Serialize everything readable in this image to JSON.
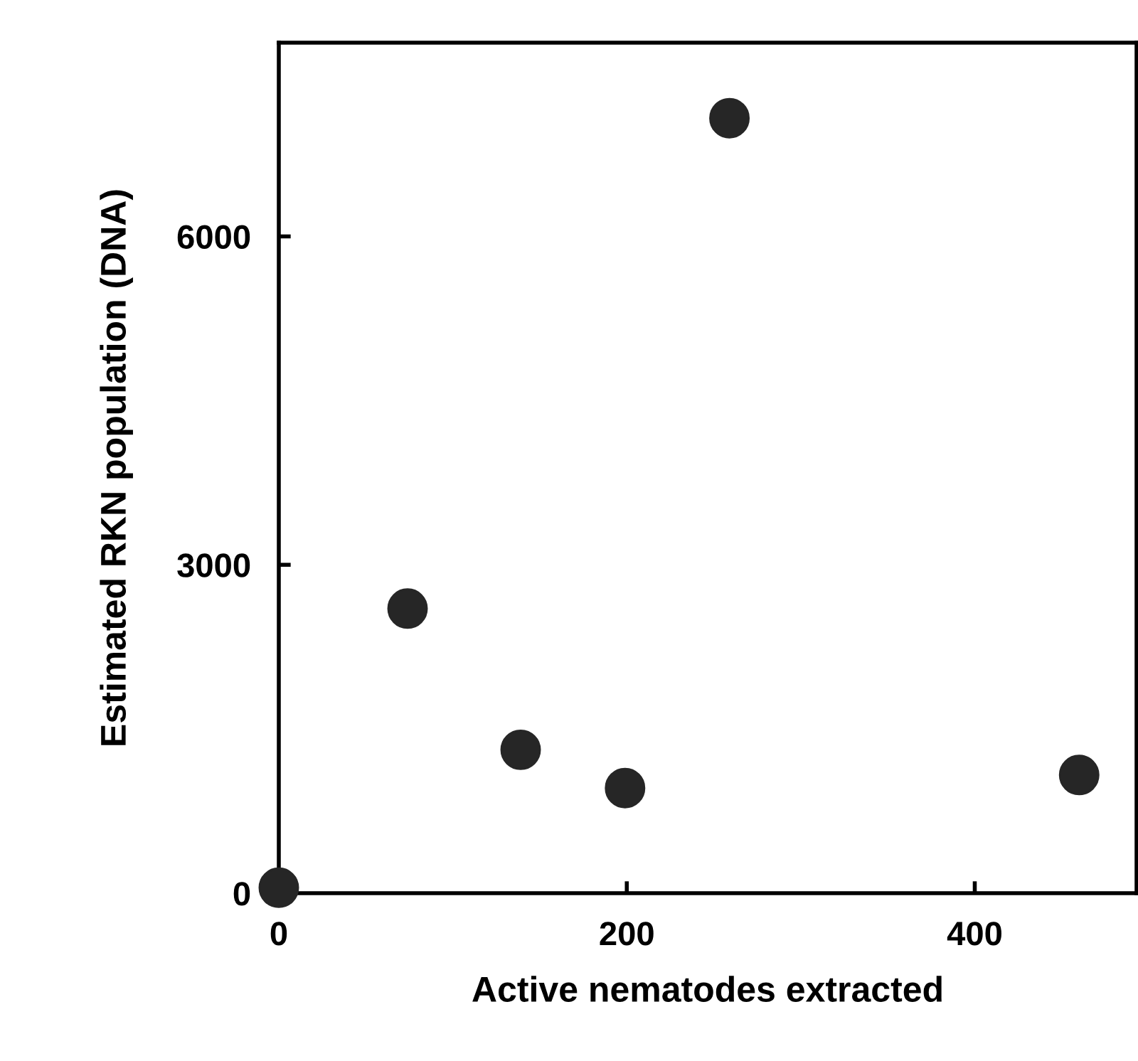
{
  "chart_data": {
    "type": "scatter",
    "xlabel": "Active nematodes extracted",
    "ylabel": "Estimated RKN population (DNA)",
    "x": [
      0,
      74,
      139,
      199,
      259,
      460
    ],
    "values": [
      50,
      2600,
      1310,
      960,
      7080,
      1080
    ],
    "color": "#262626",
    "marker": "circle",
    "xlim": [
      0,
      493
    ],
    "xticks": [
      0,
      200,
      400
    ],
    "ylim": [
      0,
      7770
    ],
    "yticks": [
      0,
      3000,
      6000
    ],
    "grid": false,
    "legend": false
  }
}
